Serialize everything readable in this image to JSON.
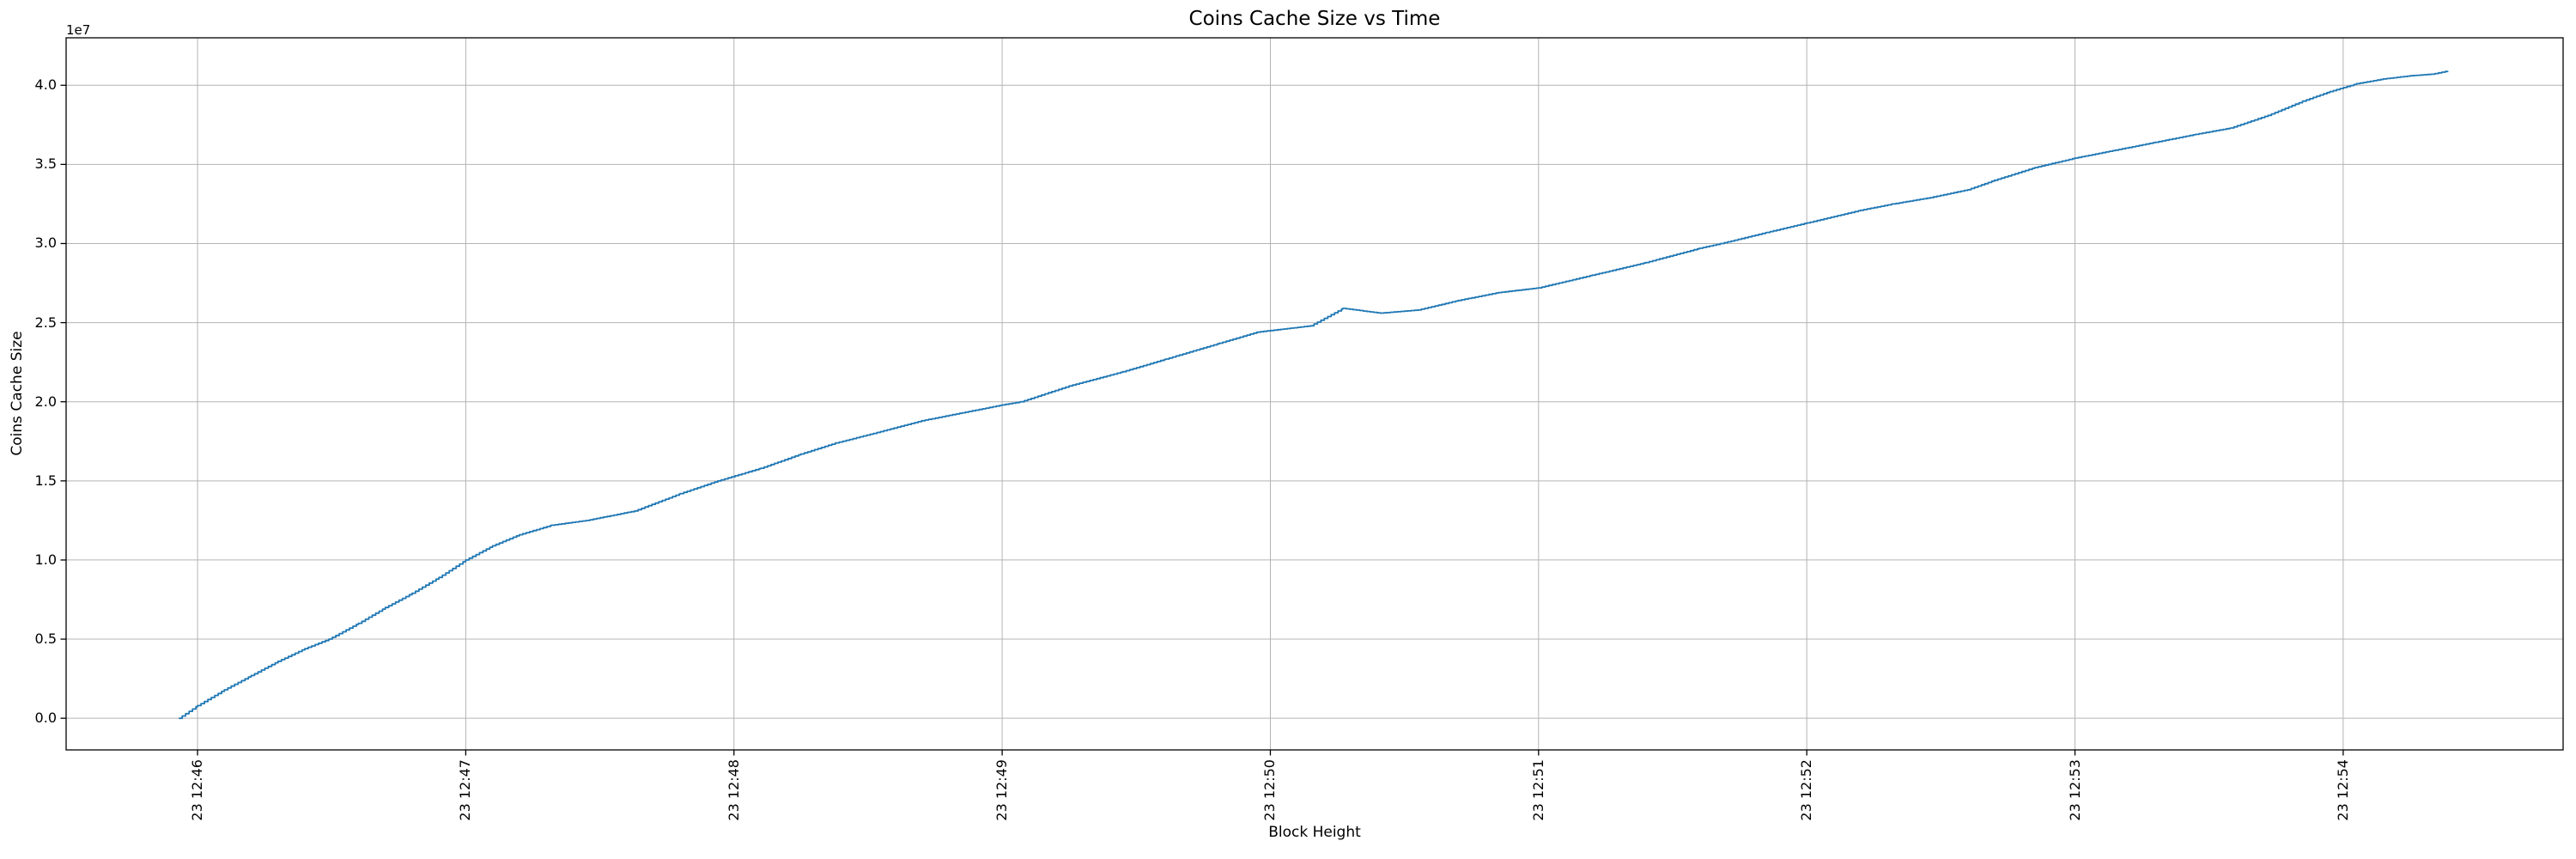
{
  "figure": {
    "background": "#ffffff"
  },
  "chart_data": {
    "type": "line",
    "title": "Coins Cache Size vs Time",
    "xlabel": "Block Height",
    "ylabel": "Coins Cache Size",
    "y_offset_text": "1e7",
    "grid": true,
    "legend": null,
    "x_unit": "minutes after day-23 12:46",
    "y_unit": "coins cache size, in units of 1e7",
    "xlim": [
      -0.49,
      8.82
    ],
    "ylim": [
      -0.2,
      4.3
    ],
    "x_ticks": [
      {
        "label": "23 12:46",
        "t": 0
      },
      {
        "label": "23 12:47",
        "t": 1
      },
      {
        "label": "23 12:48",
        "t": 2
      },
      {
        "label": "23 12:49",
        "t": 3
      },
      {
        "label": "23 12:50",
        "t": 4
      },
      {
        "label": "23 12:51",
        "t": 5
      },
      {
        "label": "23 12:52",
        "t": 6
      },
      {
        "label": "23 12:53",
        "t": 7
      },
      {
        "label": "23 12:54",
        "t": 8
      }
    ],
    "y_ticks": [
      {
        "label": "0.0",
        "v": 0.0
      },
      {
        "label": "0.5",
        "v": 0.5
      },
      {
        "label": "1.0",
        "v": 1.0
      },
      {
        "label": "1.5",
        "v": 1.5
      },
      {
        "label": "2.0",
        "v": 2.0
      },
      {
        "label": "2.5",
        "v": 2.5
      },
      {
        "label": "3.0",
        "v": 3.0
      },
      {
        "label": "3.5",
        "v": 3.5
      },
      {
        "label": "4.0",
        "v": 4.0
      }
    ],
    "line_color": "#1f77b4",
    "grid_color": "#b4b4b4",
    "spine_color": "#000000",
    "series": [
      {
        "name": "coins-cache-size",
        "points": [
          [
            -0.07,
            0.0
          ],
          [
            0.0,
            0.08
          ],
          [
            0.1,
            0.18
          ],
          [
            0.2,
            0.27
          ],
          [
            0.3,
            0.36
          ],
          [
            0.4,
            0.44
          ],
          [
            0.49,
            0.5
          ],
          [
            0.6,
            0.6
          ],
          [
            0.7,
            0.7
          ],
          [
            0.8,
            0.79
          ],
          [
            0.9,
            0.89
          ],
          [
            1.0,
            1.0
          ],
          [
            1.1,
            1.09
          ],
          [
            1.2,
            1.16
          ],
          [
            1.32,
            1.22
          ],
          [
            1.45,
            1.25
          ],
          [
            1.63,
            1.31
          ],
          [
            1.8,
            1.42
          ],
          [
            1.94,
            1.5
          ],
          [
            2.1,
            1.58
          ],
          [
            2.25,
            1.67
          ],
          [
            2.38,
            1.74
          ],
          [
            2.52,
            1.8
          ],
          [
            2.7,
            1.88
          ],
          [
            2.85,
            1.93
          ],
          [
            3.0,
            1.98
          ],
          [
            3.07,
            2.0
          ],
          [
            3.25,
            2.1
          ],
          [
            3.45,
            2.19
          ],
          [
            3.61,
            2.27
          ],
          [
            3.81,
            2.37
          ],
          [
            3.95,
            2.44
          ],
          [
            4.05,
            2.46
          ],
          [
            4.15,
            2.48
          ],
          [
            4.27,
            2.59
          ],
          [
            4.41,
            2.56
          ],
          [
            4.55,
            2.58
          ],
          [
            4.7,
            2.64
          ],
          [
            4.85,
            2.69
          ],
          [
            5.0,
            2.72
          ],
          [
            5.2,
            2.8
          ],
          [
            5.4,
            2.88
          ],
          [
            5.6,
            2.97
          ],
          [
            5.68,
            3.0
          ],
          [
            5.85,
            3.07
          ],
          [
            6.0,
            3.13
          ],
          [
            6.2,
            3.21
          ],
          [
            6.32,
            3.25
          ],
          [
            6.46,
            3.29
          ],
          [
            6.6,
            3.34
          ],
          [
            6.7,
            3.4
          ],
          [
            6.85,
            3.48
          ],
          [
            7.0,
            3.54
          ],
          [
            7.15,
            3.59
          ],
          [
            7.3,
            3.64
          ],
          [
            7.45,
            3.69
          ],
          [
            7.58,
            3.73
          ],
          [
            7.72,
            3.81
          ],
          [
            7.85,
            3.9
          ],
          [
            7.95,
            3.96
          ],
          [
            8.05,
            4.01
          ],
          [
            8.15,
            4.04
          ],
          [
            8.25,
            4.06
          ],
          [
            8.33,
            4.07
          ],
          [
            8.39,
            4.09
          ]
        ]
      }
    ]
  }
}
